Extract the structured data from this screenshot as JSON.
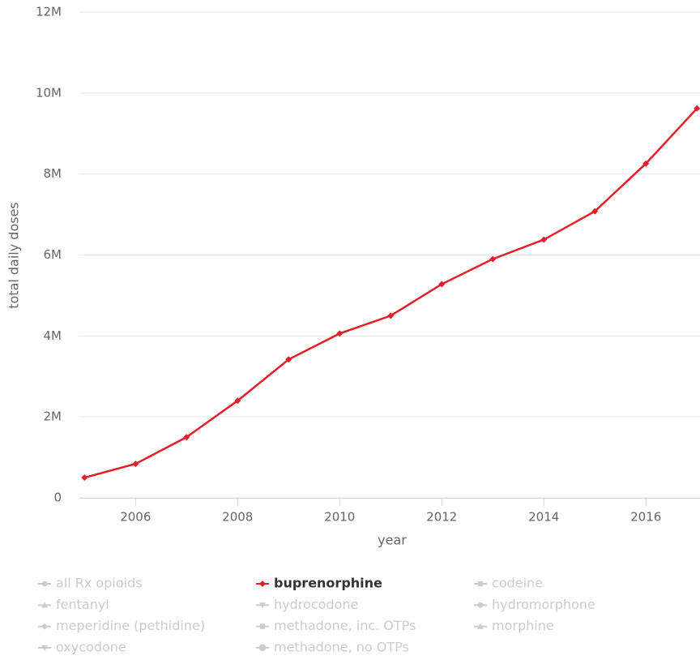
{
  "chart_data": {
    "type": "line",
    "y_axis_title": "total daily doses",
    "x_axis_title": "year",
    "x": [
      2005,
      2006,
      2007,
      2008,
      2009,
      2010,
      2011,
      2012,
      2013,
      2014,
      2015,
      2016,
      2017
    ],
    "xlim": [
      2004.9,
      2017.06
    ],
    "xticks": [
      2006,
      2008,
      2010,
      2012,
      2014,
      2016
    ],
    "ylim": [
      0,
      12000000
    ],
    "yticks": [
      0,
      {
        "value": 2000000,
        "label": "2M"
      },
      {
        "value": 4000000,
        "label": "4M"
      },
      {
        "value": 6000000,
        "label": "6M"
      },
      {
        "value": 8000000,
        "label": "8M"
      },
      {
        "value": 10000000,
        "label": "10M"
      },
      {
        "value": 12000000,
        "label": "12M"
      }
    ],
    "grid": true,
    "legend": "bottom",
    "series": [
      {
        "name": "all Rx opioids",
        "color": "#cccccc",
        "marker": "circle",
        "visible": false
      },
      {
        "name": "buprenorphine",
        "color": "#e0202a",
        "marker": "diamond",
        "visible": true,
        "values": [
          500000,
          840000,
          1500000,
          2400000,
          3420000,
          4060000,
          4500000,
          5280000,
          5900000,
          6380000,
          7080000,
          8260000,
          9620000
        ]
      },
      {
        "name": "codeine",
        "color": "#cccccc",
        "marker": "square",
        "visible": false
      },
      {
        "name": "fentanyl",
        "color": "#cccccc",
        "marker": "triangle",
        "visible": false
      },
      {
        "name": "hydrocodone",
        "color": "#cccccc",
        "marker": "triangle-down",
        "visible": false
      },
      {
        "name": "hydromorphone",
        "color": "#cccccc",
        "marker": "circle",
        "visible": false
      },
      {
        "name": "meperidine (pethidine)",
        "color": "#cccccc",
        "marker": "diamond",
        "visible": false
      },
      {
        "name": "methadone, inc. OTPs",
        "color": "#cccccc",
        "marker": "square",
        "visible": false
      },
      {
        "name": "morphine",
        "color": "#cccccc",
        "marker": "triangle",
        "visible": false
      },
      {
        "name": "oxycodone",
        "color": "#cccccc",
        "marker": "triangle-down",
        "visible": false
      },
      {
        "name": "methadone, no OTPs",
        "color": "#cccccc",
        "marker": "circle",
        "visible": false
      }
    ]
  }
}
